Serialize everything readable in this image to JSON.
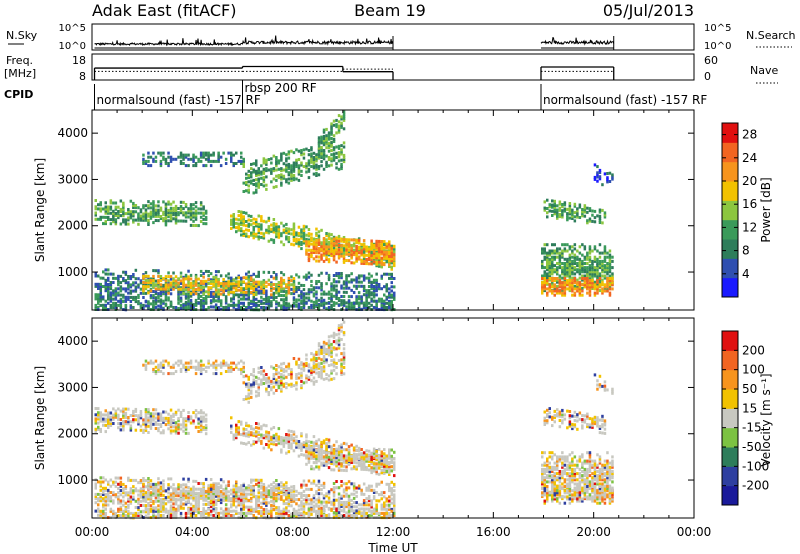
{
  "header": {
    "title": "Adak East (fitACF)",
    "beam": "Beam 19",
    "date": "05/Jul/2013"
  },
  "colors": {
    "power_scale": [
      "#1a1aff",
      "#2f4fb0",
      "#2e7d5b",
      "#3a9a5a",
      "#8cc63f",
      "#f2c200",
      "#f7941d",
      "#f26522",
      "#e01010"
    ],
    "velocity_scale": [
      "#1a1a9a",
      "#2e3fa0",
      "#2e7d5b",
      "#7cc242",
      "#c8c8c0",
      "#f2c200",
      "#f7941d",
      "#f26522",
      "#e01010"
    ]
  },
  "chart_data": [
    {
      "type": "line",
      "panel": "nsky_nsearch",
      "left_label": "N.Sky",
      "right_label": "N.Search",
      "left_ticks": [
        "10^5",
        "10^0"
      ],
      "right_ticks": [
        "10^5",
        "10^0"
      ],
      "xlim": [
        0,
        24
      ],
      "segments": [
        {
          "start": 0.1,
          "end": 12.0
        },
        {
          "start": 17.9,
          "end": 20.8
        }
      ]
    },
    {
      "type": "line",
      "panel": "freq_nave",
      "left_label": "Freq.",
      "left_unit": "[MHz]",
      "left_ticks": [
        18,
        8
      ],
      "right_label": "Nave",
      "right_ticks": [
        60,
        0
      ],
      "xlim": [
        0,
        24
      ],
      "freq_steps": [
        {
          "x0": 0.1,
          "x1": 6.0,
          "value": 12.6
        },
        {
          "x0": 6.0,
          "x1": 10.0,
          "value": 13.2
        },
        {
          "x0": 10.0,
          "x1": 12.0,
          "value": 11.2
        },
        {
          "x0": 17.9,
          "x1": 20.8,
          "value": 13.0
        }
      ],
      "nave_steps": [
        {
          "x0": 0.1,
          "x1": 6.0,
          "value": 20
        },
        {
          "x0": 6.0,
          "x1": 10.0,
          "value": 20
        },
        {
          "x0": 10.0,
          "x1": 12.0,
          "value": 25
        },
        {
          "x0": 17.9,
          "x1": 20.8,
          "value": 20
        }
      ]
    },
    {
      "type": "table",
      "panel": "cpid",
      "label": "CPID",
      "entries": [
        {
          "x": 0.1,
          "text": "normalsound (fast) -157 RF"
        },
        {
          "x": 6.0,
          "text": "rbsp 200 RF"
        },
        {
          "x": 17.9,
          "text": "normalsound (fast) -157 RF"
        }
      ]
    },
    {
      "type": "heatmap",
      "panel": "power",
      "ylabel": "Slant Range [km]",
      "yticks": [
        1000,
        2000,
        3000,
        4000
      ],
      "ylim": [
        180,
        4500
      ],
      "xlim": [
        0,
        24
      ],
      "colorbar_label": "Power [dB]",
      "colorbar_ticks": [
        4,
        8,
        12,
        16,
        20,
        24,
        28
      ],
      "colorbar_range": [
        0,
        30
      ]
    },
    {
      "type": "heatmap",
      "panel": "velocity",
      "ylabel": "Slant Range [km]",
      "yticks": [
        1000,
        2000,
        3000,
        4000
      ],
      "ylim": [
        180,
        4500
      ],
      "xlim": [
        0,
        24
      ],
      "xlabel": "Time UT",
      "xticks": [
        "00:00",
        "04:00",
        "08:00",
        "12:00",
        "16:00",
        "20:00",
        "00:00"
      ],
      "colorbar_label": "Velocity [m s⁻¹]",
      "colorbar_ticks": [
        "200",
        "100",
        "50",
        "15",
        "-15",
        "-50",
        "-100",
        "-200"
      ]
    }
  ]
}
